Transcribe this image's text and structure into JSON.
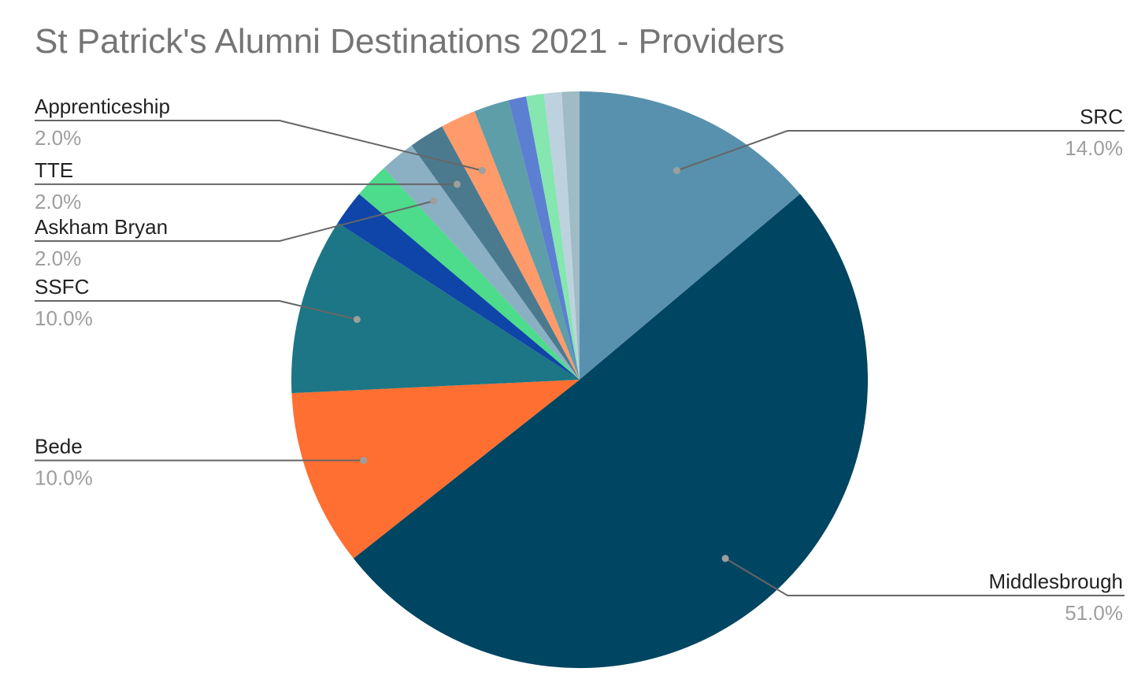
{
  "chart_data": {
    "type": "pie",
    "title": "St Patrick's Alumni Destinations 2021 - Providers",
    "slices": [
      {
        "label": "SRC",
        "value": 14.0,
        "color": "#5891ad",
        "pct_label": "14.0%"
      },
      {
        "label": "Middlesbrough",
        "value": 51.0,
        "color": "#004561",
        "pct_label": "51.0%"
      },
      {
        "label": "Bede",
        "value": 10.0,
        "color": "#ff6f31",
        "pct_label": "10.0%"
      },
      {
        "label": "SSFC",
        "value": 10.0,
        "color": "#1c7685",
        "pct_label": "10.0%"
      },
      {
        "label": "",
        "value": 2.0,
        "color": "#0f45a8",
        "pct_label": ""
      },
      {
        "label": "",
        "value": 2.0,
        "color": "#4cdc8b",
        "pct_label": ""
      },
      {
        "label": "Askham Bryan",
        "value": 2.0,
        "color": "#8bb0c4",
        "pct_label": "2.0%"
      },
      {
        "label": "TTE",
        "value": 2.0,
        "color": "#4b7a8f",
        "pct_label": "2.0%"
      },
      {
        "label": "Apprenticeship",
        "value": 2.0,
        "color": "#ff9a6a",
        "pct_label": "2.0%"
      },
      {
        "label": "",
        "value": 2.0,
        "color": "#5d9ea8",
        "pct_label": ""
      },
      {
        "label": "",
        "value": 1.0,
        "color": "#5c7fd1",
        "pct_label": ""
      },
      {
        "label": "",
        "value": 1.0,
        "color": "#85e6b0",
        "pct_label": ""
      },
      {
        "label": "",
        "value": 1.0,
        "color": "#bdd2de",
        "pct_label": ""
      },
      {
        "label": "",
        "value": 1.0,
        "color": "#9fbbc5",
        "pct_label": ""
      }
    ],
    "legend": "none"
  }
}
